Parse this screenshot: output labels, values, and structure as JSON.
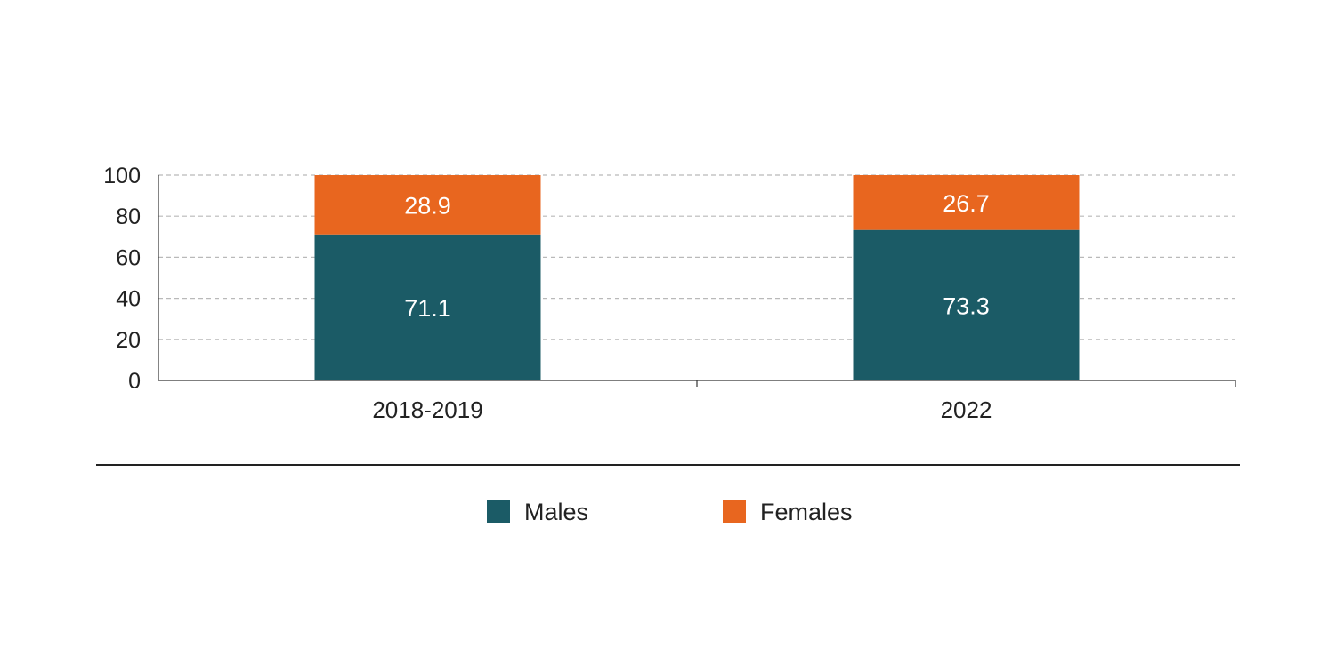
{
  "chart_data": {
    "type": "bar",
    "stacked": true,
    "categories": [
      "2018-2019",
      "2022"
    ],
    "series": [
      {
        "name": "Males",
        "values": [
          71.1,
          73.3
        ],
        "color": "#1b5b66"
      },
      {
        "name": "Females",
        "values": [
          28.9,
          26.7
        ],
        "color": "#e8661f"
      }
    ],
    "ylim": [
      0,
      100
    ],
    "yticks": [
      0,
      20,
      40,
      60,
      80,
      100
    ],
    "grid": true,
    "legend_position": "bottom",
    "title": "",
    "xlabel": "",
    "ylabel": ""
  }
}
